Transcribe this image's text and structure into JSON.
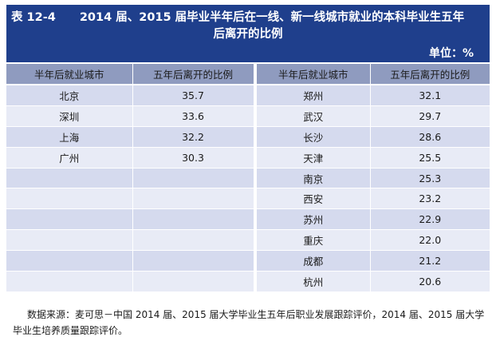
{
  "title": {
    "number": "表 12-4",
    "line1": "2014 届、2015 届毕业半年后在一线、新一线城市就业的本科毕业生五年",
    "line2": "后离开的比例"
  },
  "unit": "单位：%",
  "headers": [
    "半年后就业城市",
    "五年后离开的比例",
    "半年后就业城市",
    "五年后离开的比例"
  ],
  "left_rows": [
    {
      "city": "北京",
      "value": "35.7"
    },
    {
      "city": "深圳",
      "value": "33.6"
    },
    {
      "city": "上海",
      "value": "32.2"
    },
    {
      "city": "广州",
      "value": "30.3"
    },
    {
      "city": "",
      "value": ""
    },
    {
      "city": "",
      "value": ""
    },
    {
      "city": "",
      "value": ""
    },
    {
      "city": "",
      "value": ""
    },
    {
      "city": "",
      "value": ""
    },
    {
      "city": "",
      "value": ""
    }
  ],
  "right_rows": [
    {
      "city": "郑州",
      "value": "32.1"
    },
    {
      "city": "武汉",
      "value": "29.7"
    },
    {
      "city": "长沙",
      "value": "28.6"
    },
    {
      "city": "天津",
      "value": "25.5"
    },
    {
      "city": "南京",
      "value": "25.3"
    },
    {
      "city": "西安",
      "value": "23.2"
    },
    {
      "city": "苏州",
      "value": "22.9"
    },
    {
      "city": "重庆",
      "value": "22.0"
    },
    {
      "city": "成都",
      "value": "21.2"
    },
    {
      "city": "杭州",
      "value": "20.6"
    }
  ],
  "footnote": "数据来源：麦可思－中国 2014 届、2015 届大学毕业生五年后职业发展跟踪评价，2014 届、2015 届大学毕业生培养质量跟踪评价。",
  "colors": {
    "title_bg": "#1f3f8c",
    "header_bg": "#8f9bbf",
    "row_odd": "#d5daee",
    "row_even": "#e8ebf6"
  }
}
